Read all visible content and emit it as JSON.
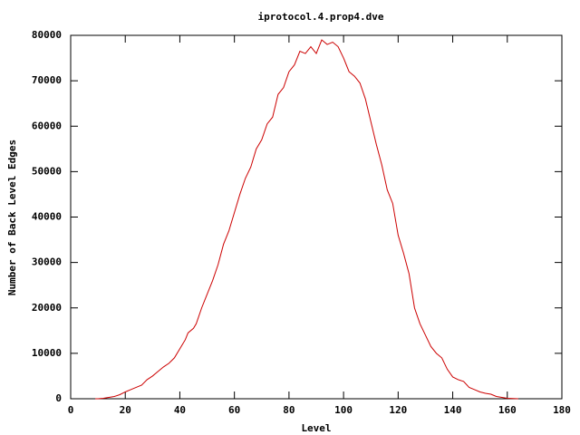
{
  "chart_data": {
    "type": "line",
    "title": "iprotocol.4.prop4.dve",
    "x_label": "Level",
    "y_label": "Number of Back Level Edges",
    "xlim": [
      0,
      180
    ],
    "xticks": [
      0,
      20,
      40,
      60,
      80,
      100,
      120,
      140,
      160,
      180
    ],
    "ylim": [
      0,
      80000
    ],
    "yticks": [
      0,
      10000,
      20000,
      30000,
      40000,
      50000,
      60000,
      70000,
      80000
    ],
    "x": [
      9,
      10,
      12,
      14,
      16,
      18,
      20,
      22,
      24,
      26,
      28,
      30,
      32,
      34,
      36,
      38,
      40,
      42,
      43,
      45,
      46,
      48,
      50,
      52,
      54,
      56,
      58,
      60,
      62,
      64,
      66,
      68,
      70,
      72,
      74,
      76,
      78,
      80,
      82,
      84,
      86,
      88,
      90,
      92,
      94,
      96,
      98,
      100,
      102,
      104,
      106,
      108,
      110,
      112,
      114,
      116,
      118,
      120,
      122,
      124,
      126,
      128,
      130,
      132,
      134,
      136,
      138,
      140,
      142,
      144,
      146,
      148,
      150,
      152,
      154,
      156,
      158,
      160,
      162,
      164
    ],
    "series": [
      {
        "color": "#cc0000",
        "values": [
          0,
          0,
          100,
          300,
          500,
          900,
          1500,
          2000,
          2500,
          3000,
          4200,
          5000,
          6000,
          7000,
          7800,
          9000,
          11000,
          13000,
          14500,
          15500,
          16500,
          20000,
          23000,
          26000,
          29500,
          34000,
          37000,
          41000,
          45000,
          48500,
          51000,
          55000,
          57000,
          60500,
          62000,
          67000,
          68500,
          72000,
          73500,
          76500,
          76000,
          77500,
          76000,
          79000,
          78000,
          78500,
          77500,
          75000,
          72000,
          71000,
          69500,
          66000,
          61000,
          56000,
          51500,
          46000,
          43000,
          36000,
          32000,
          27500,
          20000,
          16500,
          14000,
          11500,
          10000,
          9000,
          6500,
          4800,
          4200,
          3800,
          2500,
          2000,
          1500,
          1200,
          1000,
          500,
          300,
          100,
          50,
          0
        ]
      }
    ]
  }
}
